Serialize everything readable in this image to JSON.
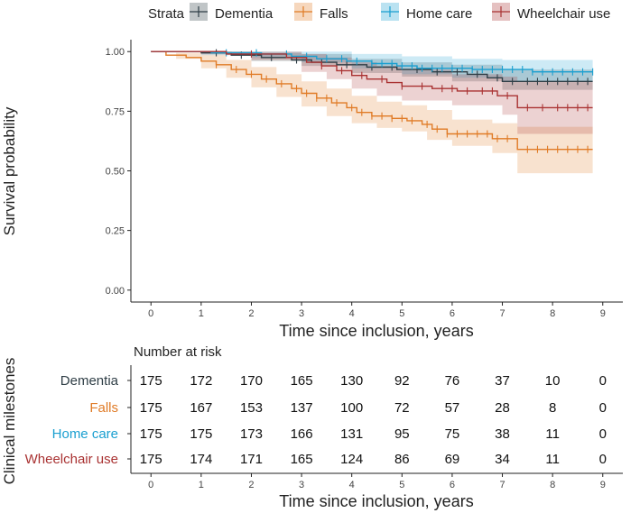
{
  "chart_data": {
    "type": "line",
    "subtype": "kaplan-meier",
    "legend": {
      "title": "Strata",
      "position": "top",
      "items": [
        "Dementia",
        "Falls",
        "Home care",
        "Wheelchair use"
      ]
    },
    "colors": {
      "Dementia": "#2f3e46",
      "Falls": "#e07b26",
      "Home care": "#1a9fd0",
      "Wheelchair use": "#a93232"
    },
    "xlabel": "Time since inclusion, years",
    "ylabel": "Survival probability",
    "xlim": [
      -0.4,
      9.4
    ],
    "ylim": [
      -0.05,
      1.05
    ],
    "xticks": [
      0,
      1,
      2,
      3,
      4,
      5,
      6,
      7,
      8,
      9
    ],
    "yticks": [
      0.0,
      0.25,
      0.5,
      0.75,
      1.0
    ],
    "ytick_labels": [
      "0.00",
      "0.25",
      "0.50",
      "0.75",
      "1.00"
    ],
    "series": [
      {
        "name": "Dementia",
        "step": [
          [
            0,
            1.0
          ],
          [
            1,
            0.995
          ],
          [
            1.6,
            0.985
          ],
          [
            2.2,
            0.975
          ],
          [
            2.8,
            0.965
          ],
          [
            3.2,
            0.955
          ],
          [
            3.7,
            0.945
          ],
          [
            4.3,
            0.935
          ],
          [
            4.9,
            0.925
          ],
          [
            5.6,
            0.915
          ],
          [
            6.3,
            0.905
          ],
          [
            6.7,
            0.89
          ],
          [
            7.0,
            0.875
          ],
          [
            8.8,
            0.875
          ]
        ],
        "lower": [
          [
            0,
            1.0
          ],
          [
            1,
            0.985
          ],
          [
            2,
            0.96
          ],
          [
            3,
            0.94
          ],
          [
            4,
            0.91
          ],
          [
            5,
            0.895
          ],
          [
            6,
            0.875
          ],
          [
            7,
            0.84
          ],
          [
            8.8,
            0.84
          ]
        ],
        "upper": [
          [
            0,
            1.0
          ],
          [
            1,
            1.0
          ],
          [
            2,
            0.995
          ],
          [
            3,
            0.99
          ],
          [
            4,
            0.97
          ],
          [
            5,
            0.955
          ],
          [
            6,
            0.945
          ],
          [
            7,
            0.925
          ],
          [
            8.8,
            0.925
          ]
        ],
        "censor": [
          1.3,
          1.8,
          2.4,
          2.9,
          3.4,
          3.9,
          4.4,
          4.8,
          5.3,
          5.7,
          6.1,
          6.5,
          6.9,
          7.2,
          7.5,
          7.7,
          7.9,
          8.1,
          8.3,
          8.5,
          8.7
        ]
      },
      {
        "name": "Falls",
        "step": [
          [
            0,
            1.0
          ],
          [
            0.3,
            0.985
          ],
          [
            0.7,
            0.975
          ],
          [
            1.0,
            0.96
          ],
          [
            1.3,
            0.945
          ],
          [
            1.6,
            0.925
          ],
          [
            1.9,
            0.905
          ],
          [
            2.2,
            0.885
          ],
          [
            2.5,
            0.865
          ],
          [
            2.8,
            0.845
          ],
          [
            3.0,
            0.825
          ],
          [
            3.3,
            0.805
          ],
          [
            3.6,
            0.785
          ],
          [
            3.9,
            0.765
          ],
          [
            4.1,
            0.745
          ],
          [
            4.4,
            0.73
          ],
          [
            4.8,
            0.72
          ],
          [
            5.1,
            0.71
          ],
          [
            5.4,
            0.695
          ],
          [
            5.6,
            0.675
          ],
          [
            5.9,
            0.655
          ],
          [
            6.8,
            0.635
          ],
          [
            7.3,
            0.59
          ],
          [
            8.8,
            0.59
          ]
        ],
        "lower": [
          [
            0,
            1.0
          ],
          [
            0.5,
            0.97
          ],
          [
            1,
            0.93
          ],
          [
            1.5,
            0.89
          ],
          [
            2,
            0.85
          ],
          [
            2.5,
            0.81
          ],
          [
            3,
            0.77
          ],
          [
            3.5,
            0.73
          ],
          [
            4,
            0.7
          ],
          [
            4.5,
            0.68
          ],
          [
            5,
            0.665
          ],
          [
            5.5,
            0.63
          ],
          [
            6,
            0.605
          ],
          [
            6.8,
            0.575
          ],
          [
            7.3,
            0.49
          ],
          [
            8.8,
            0.49
          ]
        ],
        "upper": [
          [
            0,
            1.0
          ],
          [
            0.5,
            0.995
          ],
          [
            1,
            0.985
          ],
          [
            1.5,
            0.965
          ],
          [
            2,
            0.935
          ],
          [
            2.5,
            0.905
          ],
          [
            3,
            0.875
          ],
          [
            3.5,
            0.845
          ],
          [
            4,
            0.815
          ],
          [
            4.5,
            0.79
          ],
          [
            5,
            0.775
          ],
          [
            5.5,
            0.755
          ],
          [
            6,
            0.715
          ],
          [
            6.8,
            0.7
          ],
          [
            7.3,
            0.685
          ],
          [
            8.8,
            0.685
          ]
        ],
        "censor": [
          1.3,
          1.7,
          2.0,
          2.3,
          2.6,
          2.9,
          3.1,
          3.3,
          3.5,
          3.7,
          4.0,
          4.2,
          4.4,
          4.6,
          4.8,
          5.0,
          5.2,
          5.5,
          5.7,
          5.9,
          6.1,
          6.3,
          6.5,
          6.7,
          6.9,
          7.1,
          7.5,
          7.7,
          7.9,
          8.1,
          8.3,
          8.5,
          8.7
        ]
      },
      {
        "name": "Home care",
        "step": [
          [
            0,
            1.0
          ],
          [
            1.2,
            0.995
          ],
          [
            2.2,
            0.99
          ],
          [
            2.8,
            0.98
          ],
          [
            3.3,
            0.97
          ],
          [
            3.9,
            0.96
          ],
          [
            4.4,
            0.95
          ],
          [
            4.9,
            0.94
          ],
          [
            5.3,
            0.93
          ],
          [
            6.4,
            0.925
          ],
          [
            7.6,
            0.915
          ],
          [
            8.8,
            0.915
          ]
        ],
        "lower": [
          [
            0,
            1.0
          ],
          [
            1,
            0.99
          ],
          [
            2,
            0.975
          ],
          [
            3,
            0.955
          ],
          [
            4,
            0.93
          ],
          [
            5,
            0.905
          ],
          [
            6,
            0.89
          ],
          [
            7,
            0.875
          ],
          [
            8.8,
            0.87
          ]
        ],
        "upper": [
          [
            0,
            1.0
          ],
          [
            1,
            1.0
          ],
          [
            2,
            1.0
          ],
          [
            3,
            1.0
          ],
          [
            4,
            0.99
          ],
          [
            5,
            0.98
          ],
          [
            6,
            0.97
          ],
          [
            7,
            0.965
          ],
          [
            8.8,
            0.96
          ]
        ],
        "censor": [
          1.5,
          2.1,
          2.7,
          3.1,
          3.5,
          3.8,
          4.1,
          4.4,
          4.6,
          4.8,
          5.0,
          5.2,
          5.4,
          5.6,
          5.8,
          6.0,
          6.2,
          6.4,
          6.6,
          6.8,
          7.0,
          7.2,
          7.4,
          7.6,
          7.8,
          8.0,
          8.2,
          8.4,
          8.6,
          8.8
        ]
      },
      {
        "name": "Wheelchair use",
        "step": [
          [
            0,
            1.0
          ],
          [
            1.5,
            0.99
          ],
          [
            2.7,
            0.975
          ],
          [
            3.1,
            0.955
          ],
          [
            3.4,
            0.94
          ],
          [
            3.7,
            0.92
          ],
          [
            4.0,
            0.9
          ],
          [
            4.3,
            0.885
          ],
          [
            4.7,
            0.87
          ],
          [
            5.0,
            0.855
          ],
          [
            5.6,
            0.845
          ],
          [
            6.1,
            0.835
          ],
          [
            6.9,
            0.815
          ],
          [
            7.3,
            0.765
          ],
          [
            8.8,
            0.765
          ]
        ],
        "lower": [
          [
            0,
            1.0
          ],
          [
            1,
            0.99
          ],
          [
            2,
            0.965
          ],
          [
            3,
            0.915
          ],
          [
            3.5,
            0.885
          ],
          [
            4,
            0.845
          ],
          [
            4.5,
            0.815
          ],
          [
            5,
            0.795
          ],
          [
            6,
            0.775
          ],
          [
            7,
            0.735
          ],
          [
            7.3,
            0.655
          ],
          [
            8.8,
            0.655
          ]
        ],
        "upper": [
          [
            0,
            1.0
          ],
          [
            1,
            1.0
          ],
          [
            2,
            1.0
          ],
          [
            3,
            0.99
          ],
          [
            3.5,
            0.975
          ],
          [
            4,
            0.955
          ],
          [
            4.5,
            0.94
          ],
          [
            5,
            0.925
          ],
          [
            6,
            0.905
          ],
          [
            7,
            0.895
          ],
          [
            7.3,
            0.875
          ],
          [
            8.8,
            0.875
          ]
        ],
        "censor": [
          2.0,
          3.4,
          3.8,
          4.2,
          4.6,
          5.0,
          5.4,
          5.8,
          6.0,
          6.3,
          6.6,
          6.8,
          7.1,
          7.5,
          7.8,
          8.1,
          8.3,
          8.5,
          8.7
        ]
      }
    ]
  },
  "risk_table": {
    "ylabel": "Clinical milestones",
    "title": "Number at risk",
    "xlabel": "Time since inclusion, years",
    "xticks": [
      0,
      1,
      2,
      3,
      4,
      5,
      6,
      7,
      8,
      9
    ],
    "rows": [
      {
        "name": "Dementia",
        "values": [
          "175",
          "172",
          "170",
          "165",
          "130",
          "92",
          "76",
          "37",
          "10",
          "0"
        ]
      },
      {
        "name": "Falls",
        "values": [
          "175",
          "167",
          "153",
          "137",
          "100",
          "72",
          "57",
          "28",
          "8",
          "0"
        ]
      },
      {
        "name": "Home care",
        "values": [
          "175",
          "175",
          "173",
          "166",
          "131",
          "95",
          "75",
          "38",
          "11",
          "0"
        ]
      },
      {
        "name": "Wheelchair use",
        "values": [
          "175",
          "174",
          "171",
          "165",
          "124",
          "86",
          "69",
          "34",
          "11",
          "0"
        ]
      }
    ]
  }
}
